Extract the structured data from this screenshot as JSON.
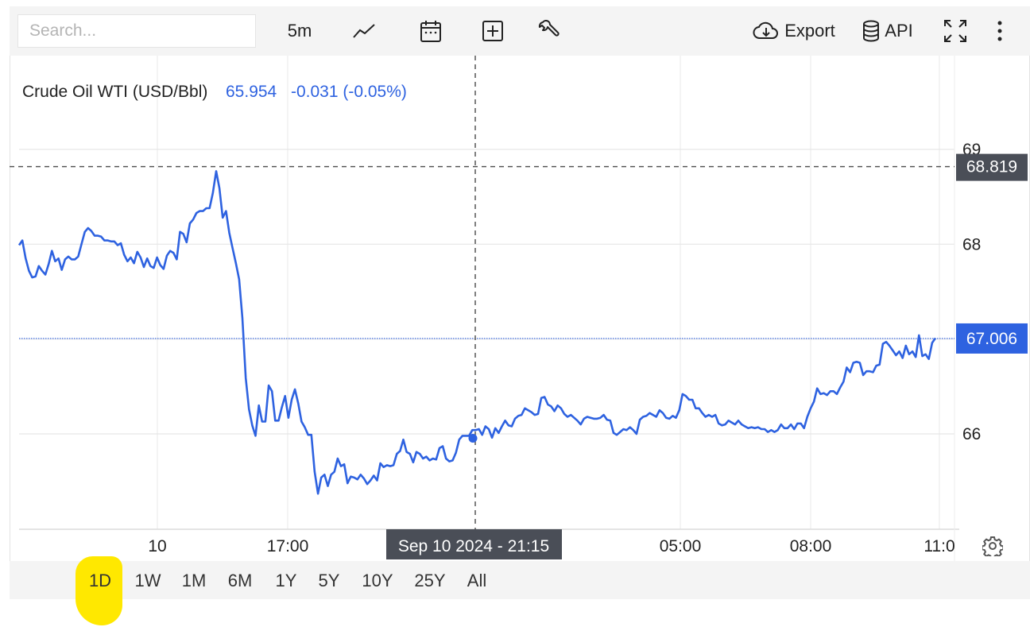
{
  "toolbar": {
    "search_placeholder": "Search...",
    "interval_label": "5m",
    "export_label": "Export",
    "api_label": "API",
    "icons": [
      "line-chart-icon",
      "calendar-icon",
      "add-indicator-icon",
      "wrench-icon",
      "cloud-download-icon",
      "database-icon",
      "fullscreen-icon",
      "more-vertical-icon"
    ]
  },
  "legend": {
    "name": "Crude Oil WTI (USD/Bbl)",
    "price": "65.954",
    "change": "-0.031 (-0.05%)"
  },
  "crosshair": {
    "time_label": "Sep 10 2024 - 21:15",
    "price_label": "68.819"
  },
  "last_price_label": "67.006",
  "colors": {
    "line": "#2e62e0",
    "accent": "#2e62e0",
    "label_dark": "#4a4e57",
    "toolbar_bg": "#f4f4f4",
    "highlight": "#ffe800"
  },
  "chart_data": {
    "type": "line",
    "title": "Crude Oil WTI (USD/Bbl)",
    "ylim": [
      65.0,
      70.0
    ],
    "y_ticks": [
      66,
      67,
      68,
      69
    ],
    "y_tick_labels": [
      "66",
      "67",
      "68",
      "69"
    ],
    "x_tick_labels": [
      "10",
      "17:00",
      "05:00",
      "08:00",
      "11:0"
    ],
    "grid": true,
    "series": [
      {
        "values": [
          67.99,
          68.04,
          67.85,
          67.72,
          67.65,
          67.66,
          67.77,
          67.72,
          67.68,
          67.79,
          67.93,
          67.82,
          67.85,
          67.73,
          67.84,
          67.87,
          67.84,
          67.84,
          67.87,
          68.0,
          68.13,
          68.17,
          68.14,
          68.09,
          68.09,
          68.08,
          68.04,
          68.04,
          68.03,
          68.03,
          67.99,
          68.01,
          67.89,
          67.82,
          67.86,
          67.8,
          67.92,
          67.86,
          67.76,
          67.85,
          67.77,
          67.75,
          67.86,
          67.78,
          67.74,
          67.88,
          67.93,
          67.91,
          67.84,
          68.13,
          68.11,
          68.02,
          68.22,
          68.26,
          68.33,
          68.35,
          68.35,
          68.38,
          68.38,
          68.54,
          68.77,
          68.59,
          68.28,
          68.35,
          68.12,
          67.96,
          67.8,
          67.63,
          67.22,
          66.59,
          66.26,
          66.09,
          65.98,
          66.3,
          66.13,
          66.13,
          66.51,
          66.45,
          66.14,
          66.14,
          66.28,
          66.4,
          66.17,
          66.36,
          66.47,
          66.32,
          66.13,
          66.07,
          65.99,
          65.99,
          65.6,
          65.37,
          65.54,
          65.57,
          65.45,
          65.57,
          65.6,
          65.74,
          65.66,
          65.68,
          65.48,
          65.55,
          65.54,
          65.52,
          65.57,
          65.53,
          65.47,
          65.51,
          65.56,
          65.51,
          65.69,
          65.65,
          65.67,
          65.66,
          65.67,
          65.79,
          65.82,
          65.94,
          65.81,
          65.79,
          65.7,
          65.81,
          65.79,
          65.74,
          65.76,
          65.72,
          65.74,
          65.73,
          65.85,
          65.87,
          65.74,
          65.71,
          65.72,
          65.8,
          65.94,
          65.98,
          65.98,
          65.98,
          66.04,
          66.04,
          66.05,
          65.99,
          66.08,
          66.05,
          65.96,
          66.06,
          66.01,
          66.08,
          66.14,
          66.09,
          66.08,
          66.16,
          66.19,
          66.2,
          66.27,
          66.25,
          66.23,
          66.2,
          66.21,
          66.38,
          66.39,
          66.31,
          66.29,
          66.24,
          66.3,
          66.27,
          66.21,
          66.18,
          66.2,
          66.17,
          66.14,
          66.1,
          66.16,
          66.18,
          66.17,
          66.16,
          66.16,
          66.17,
          66.2,
          66.15,
          66.14,
          66.01,
          65.99,
          66.02,
          66.05,
          66.04,
          66.07,
          66.04,
          66.0,
          66.15,
          66.18,
          66.19,
          66.22,
          66.2,
          66.18,
          66.25,
          66.22,
          66.17,
          66.16,
          66.19,
          66.17,
          66.25,
          66.42,
          66.4,
          66.36,
          66.36,
          66.27,
          66.27,
          66.22,
          66.18,
          66.2,
          66.18,
          66.2,
          66.11,
          66.09,
          66.1,
          66.14,
          66.12,
          66.1,
          66.14,
          66.1,
          66.08,
          66.06,
          66.07,
          66.06,
          66.07,
          66.05,
          66.05,
          66.02,
          66.04,
          66.02,
          66.04,
          66.1,
          66.06,
          66.06,
          66.1,
          66.05,
          66.11,
          66.11,
          66.06,
          66.18,
          66.27,
          66.34,
          66.48,
          66.42,
          66.43,
          66.41,
          66.45,
          66.45,
          66.42,
          66.49,
          66.55,
          66.7,
          66.65,
          66.75,
          66.76,
          66.75,
          66.62,
          66.66,
          66.66,
          66.65,
          66.72,
          66.73,
          66.95,
          66.97,
          66.93,
          66.88,
          66.83,
          66.87,
          66.8,
          66.93,
          66.84,
          66.87,
          66.81,
          67.04,
          66.82,
          66.84,
          66.79,
          66.96,
          67.01
        ],
        "dates": [
          "Sep 10 2024 - 21:15"
        ],
        "date_values": [
          65.954
        ]
      }
    ]
  },
  "ranges": [
    "1D",
    "1W",
    "1M",
    "6M",
    "1Y",
    "5Y",
    "10Y",
    "25Y",
    "All"
  ],
  "selected_range": "1D"
}
